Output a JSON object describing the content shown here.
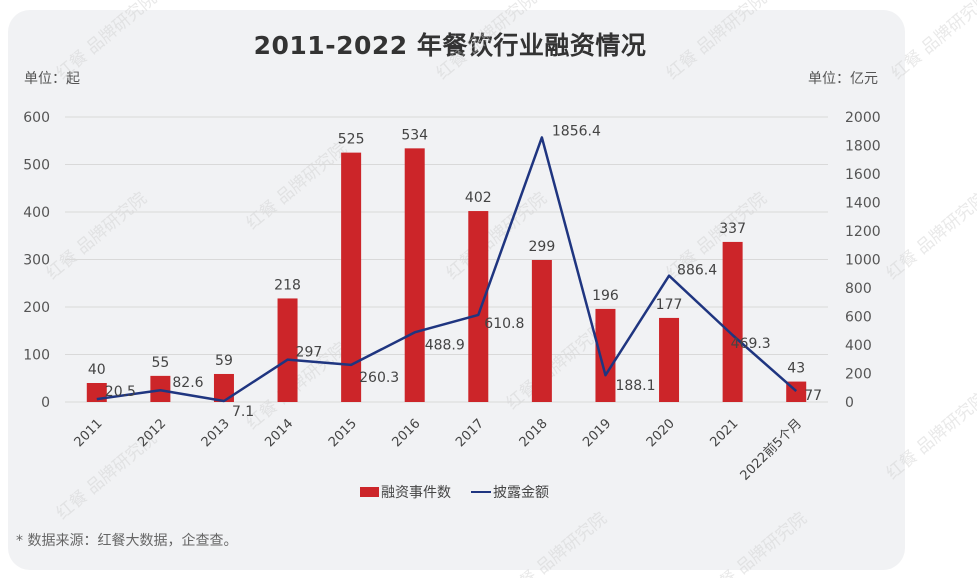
{
  "title": "2011-2022 年餐饮行业融资情况",
  "left_unit": "单位：起",
  "right_unit": "单位：亿元",
  "footnote": "* 数据来源：红餐大数据，企查查。",
  "watermark": "红餐 品牌研究院",
  "colors": {
    "bar": "#cc2529",
    "line": "#1f3580",
    "grid": "#d9d9d9",
    "background": "#f1f2f4"
  },
  "legend": [
    {
      "label": "融资事件数",
      "type": "bar"
    },
    {
      "label": "披露金额",
      "type": "line"
    }
  ],
  "chart_data": {
    "type": "bar",
    "title": "2011-2022 年餐饮行业融资情况",
    "categories": [
      "2011",
      "2012",
      "2013",
      "2014",
      "2015",
      "2016",
      "2017",
      "2018",
      "2019",
      "2020",
      "2021",
      "2022前5个月"
    ],
    "series": [
      {
        "name": "融资事件数",
        "type": "bar",
        "axis": "left",
        "values": [
          40,
          55,
          59,
          218,
          525,
          534,
          402,
          299,
          196,
          177,
          337,
          43
        ]
      },
      {
        "name": "披露金额",
        "type": "line",
        "axis": "right",
        "values": [
          20.5,
          82.6,
          7.1,
          297,
          260.3,
          488.9,
          610.8,
          1856.4,
          188.1,
          886.4,
          469.3,
          77
        ]
      }
    ],
    "ylabel_left": "单位：起",
    "ylabel_right": "单位：亿元",
    "ylim_left": [
      0,
      600
    ],
    "yticks_left": [
      0,
      100,
      200,
      300,
      400,
      500,
      600
    ],
    "ylim_right": [
      0,
      2000
    ],
    "yticks_right": [
      0,
      200,
      400,
      600,
      800,
      1000,
      1200,
      1400,
      1600,
      1800,
      2000
    ],
    "grid": true,
    "legend_position": "bottom"
  }
}
